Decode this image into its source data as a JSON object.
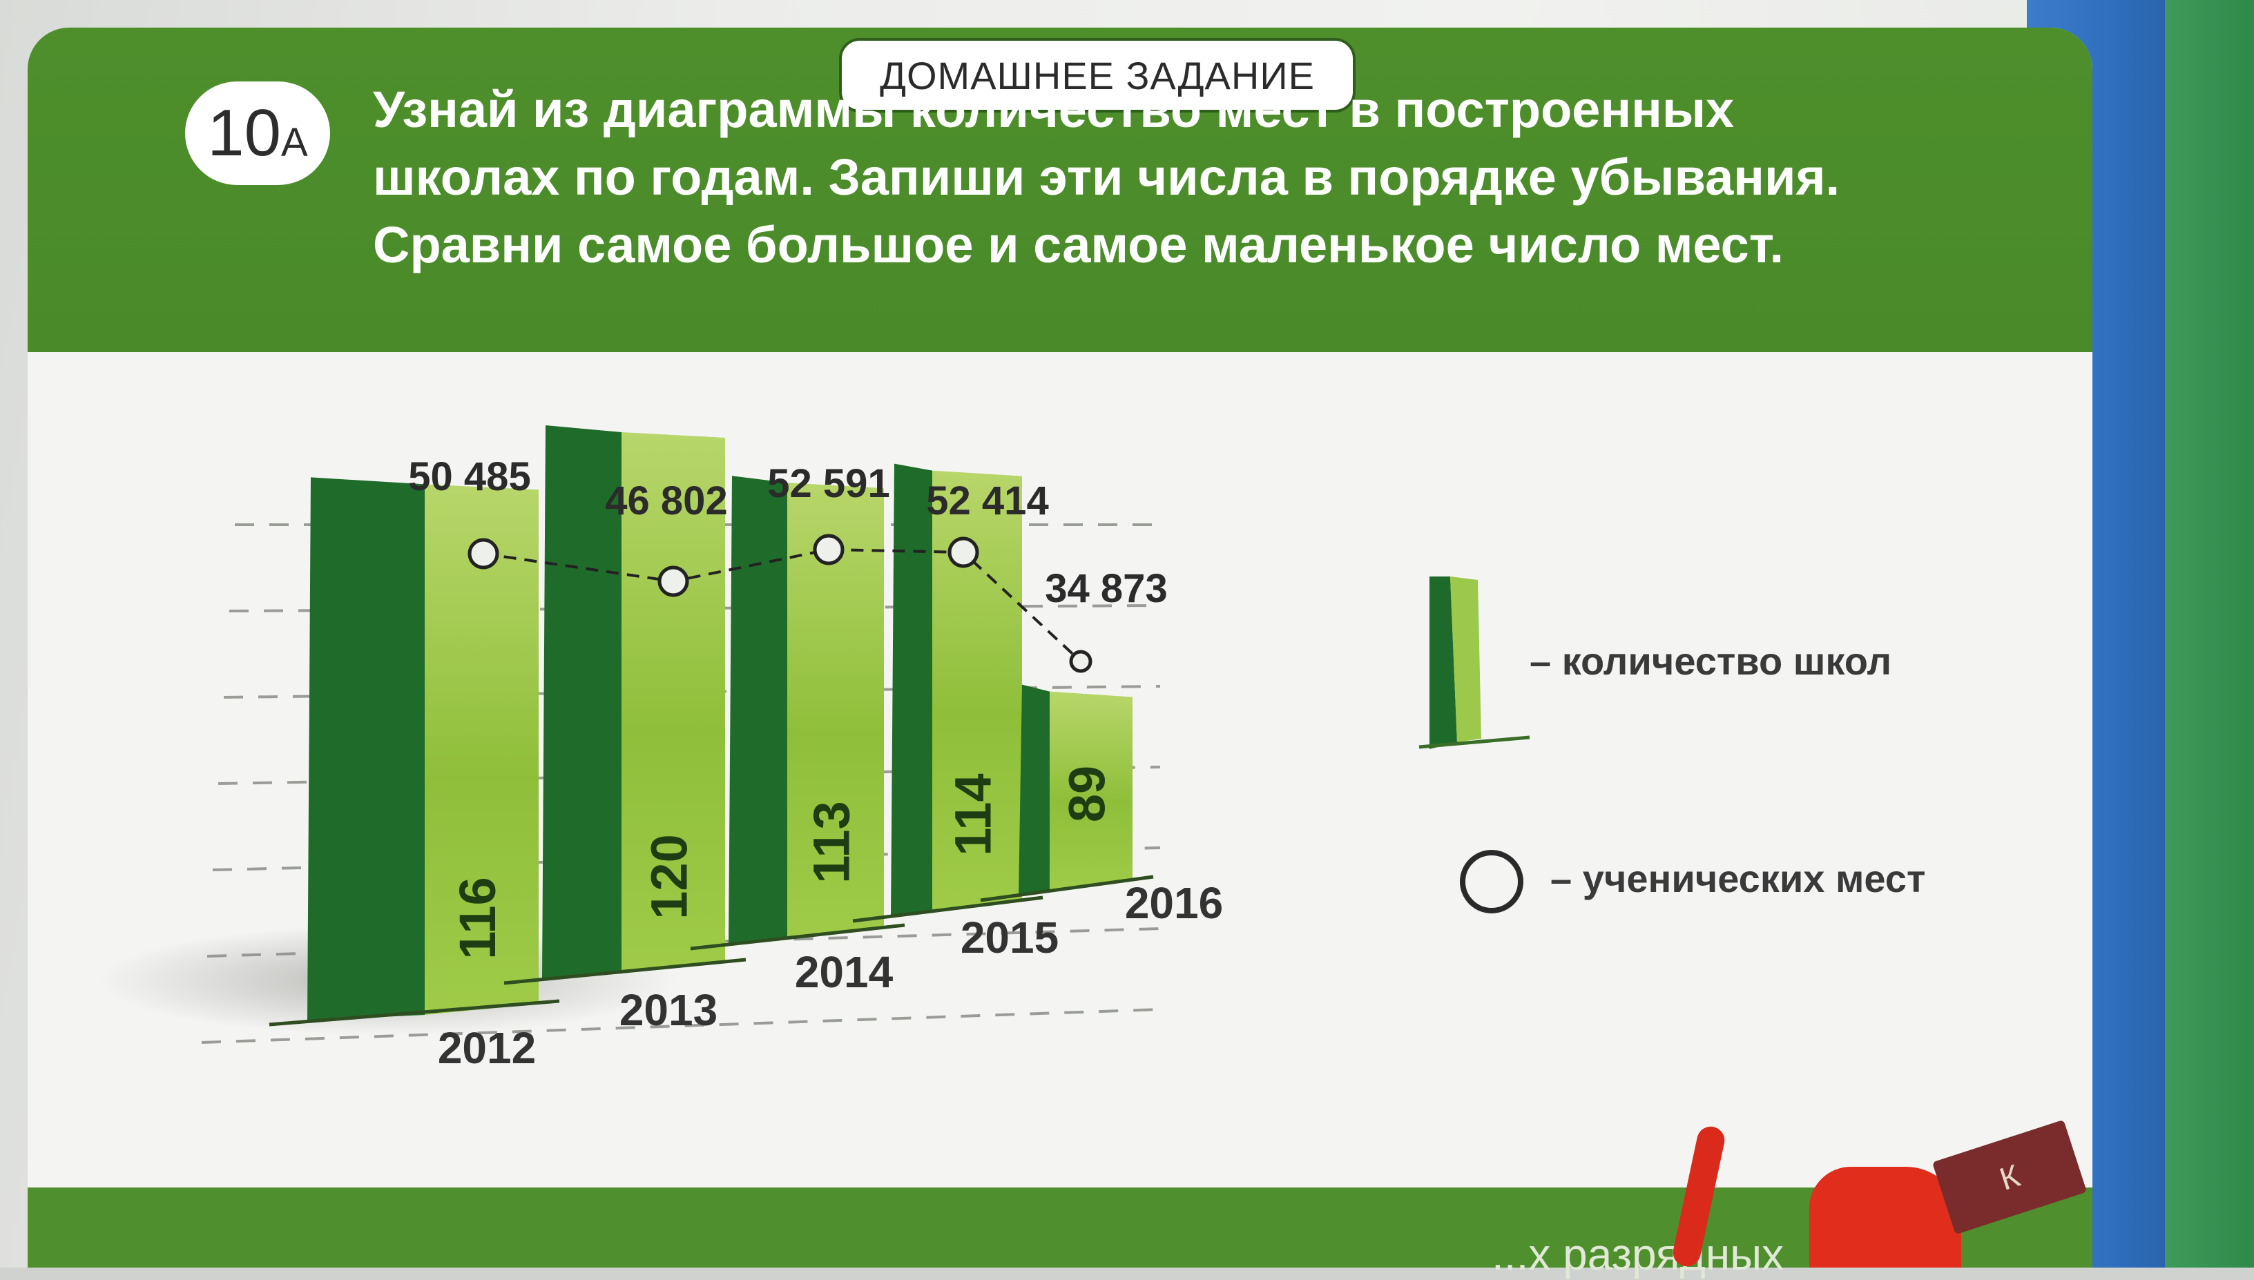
{
  "header": {
    "tab_label": "ДОМАШНЕЕ ЗАДАНИЕ",
    "task_number": "10",
    "task_letter": "А",
    "task_lines": [
      "Узнай из диаграммы количество мест в построенных",
      "школах по годам. Запиши эти числа в порядке убывания.",
      "Сравни самое большое и самое маленькое число мест."
    ]
  },
  "legend": {
    "schools": "– количество школ",
    "seats": "– ученических мест"
  },
  "colors": {
    "bar_dark": "#1f6b2a",
    "bar_light": "#8fbf3a",
    "header_green": "#4e8f2c"
  },
  "chart_data": {
    "type": "bar",
    "categories": [
      "2012",
      "2013",
      "2014",
      "2015",
      "2016"
    ],
    "series": [
      {
        "name": "количество школ",
        "values": [
          116,
          120,
          113,
          114,
          89
        ]
      },
      {
        "name": "ученических мест",
        "values": [
          50485,
          46802,
          52591,
          52414,
          34873
        ]
      }
    ],
    "schools_labels": [
      "116",
      "120",
      "113",
      "114",
      "89"
    ],
    "seats_labels": [
      "50 485",
      "46 802",
      "52 591",
      "52 414",
      "34 873"
    ],
    "grid": true
  },
  "footer": {
    "partial_text": "...х разрядных"
  }
}
